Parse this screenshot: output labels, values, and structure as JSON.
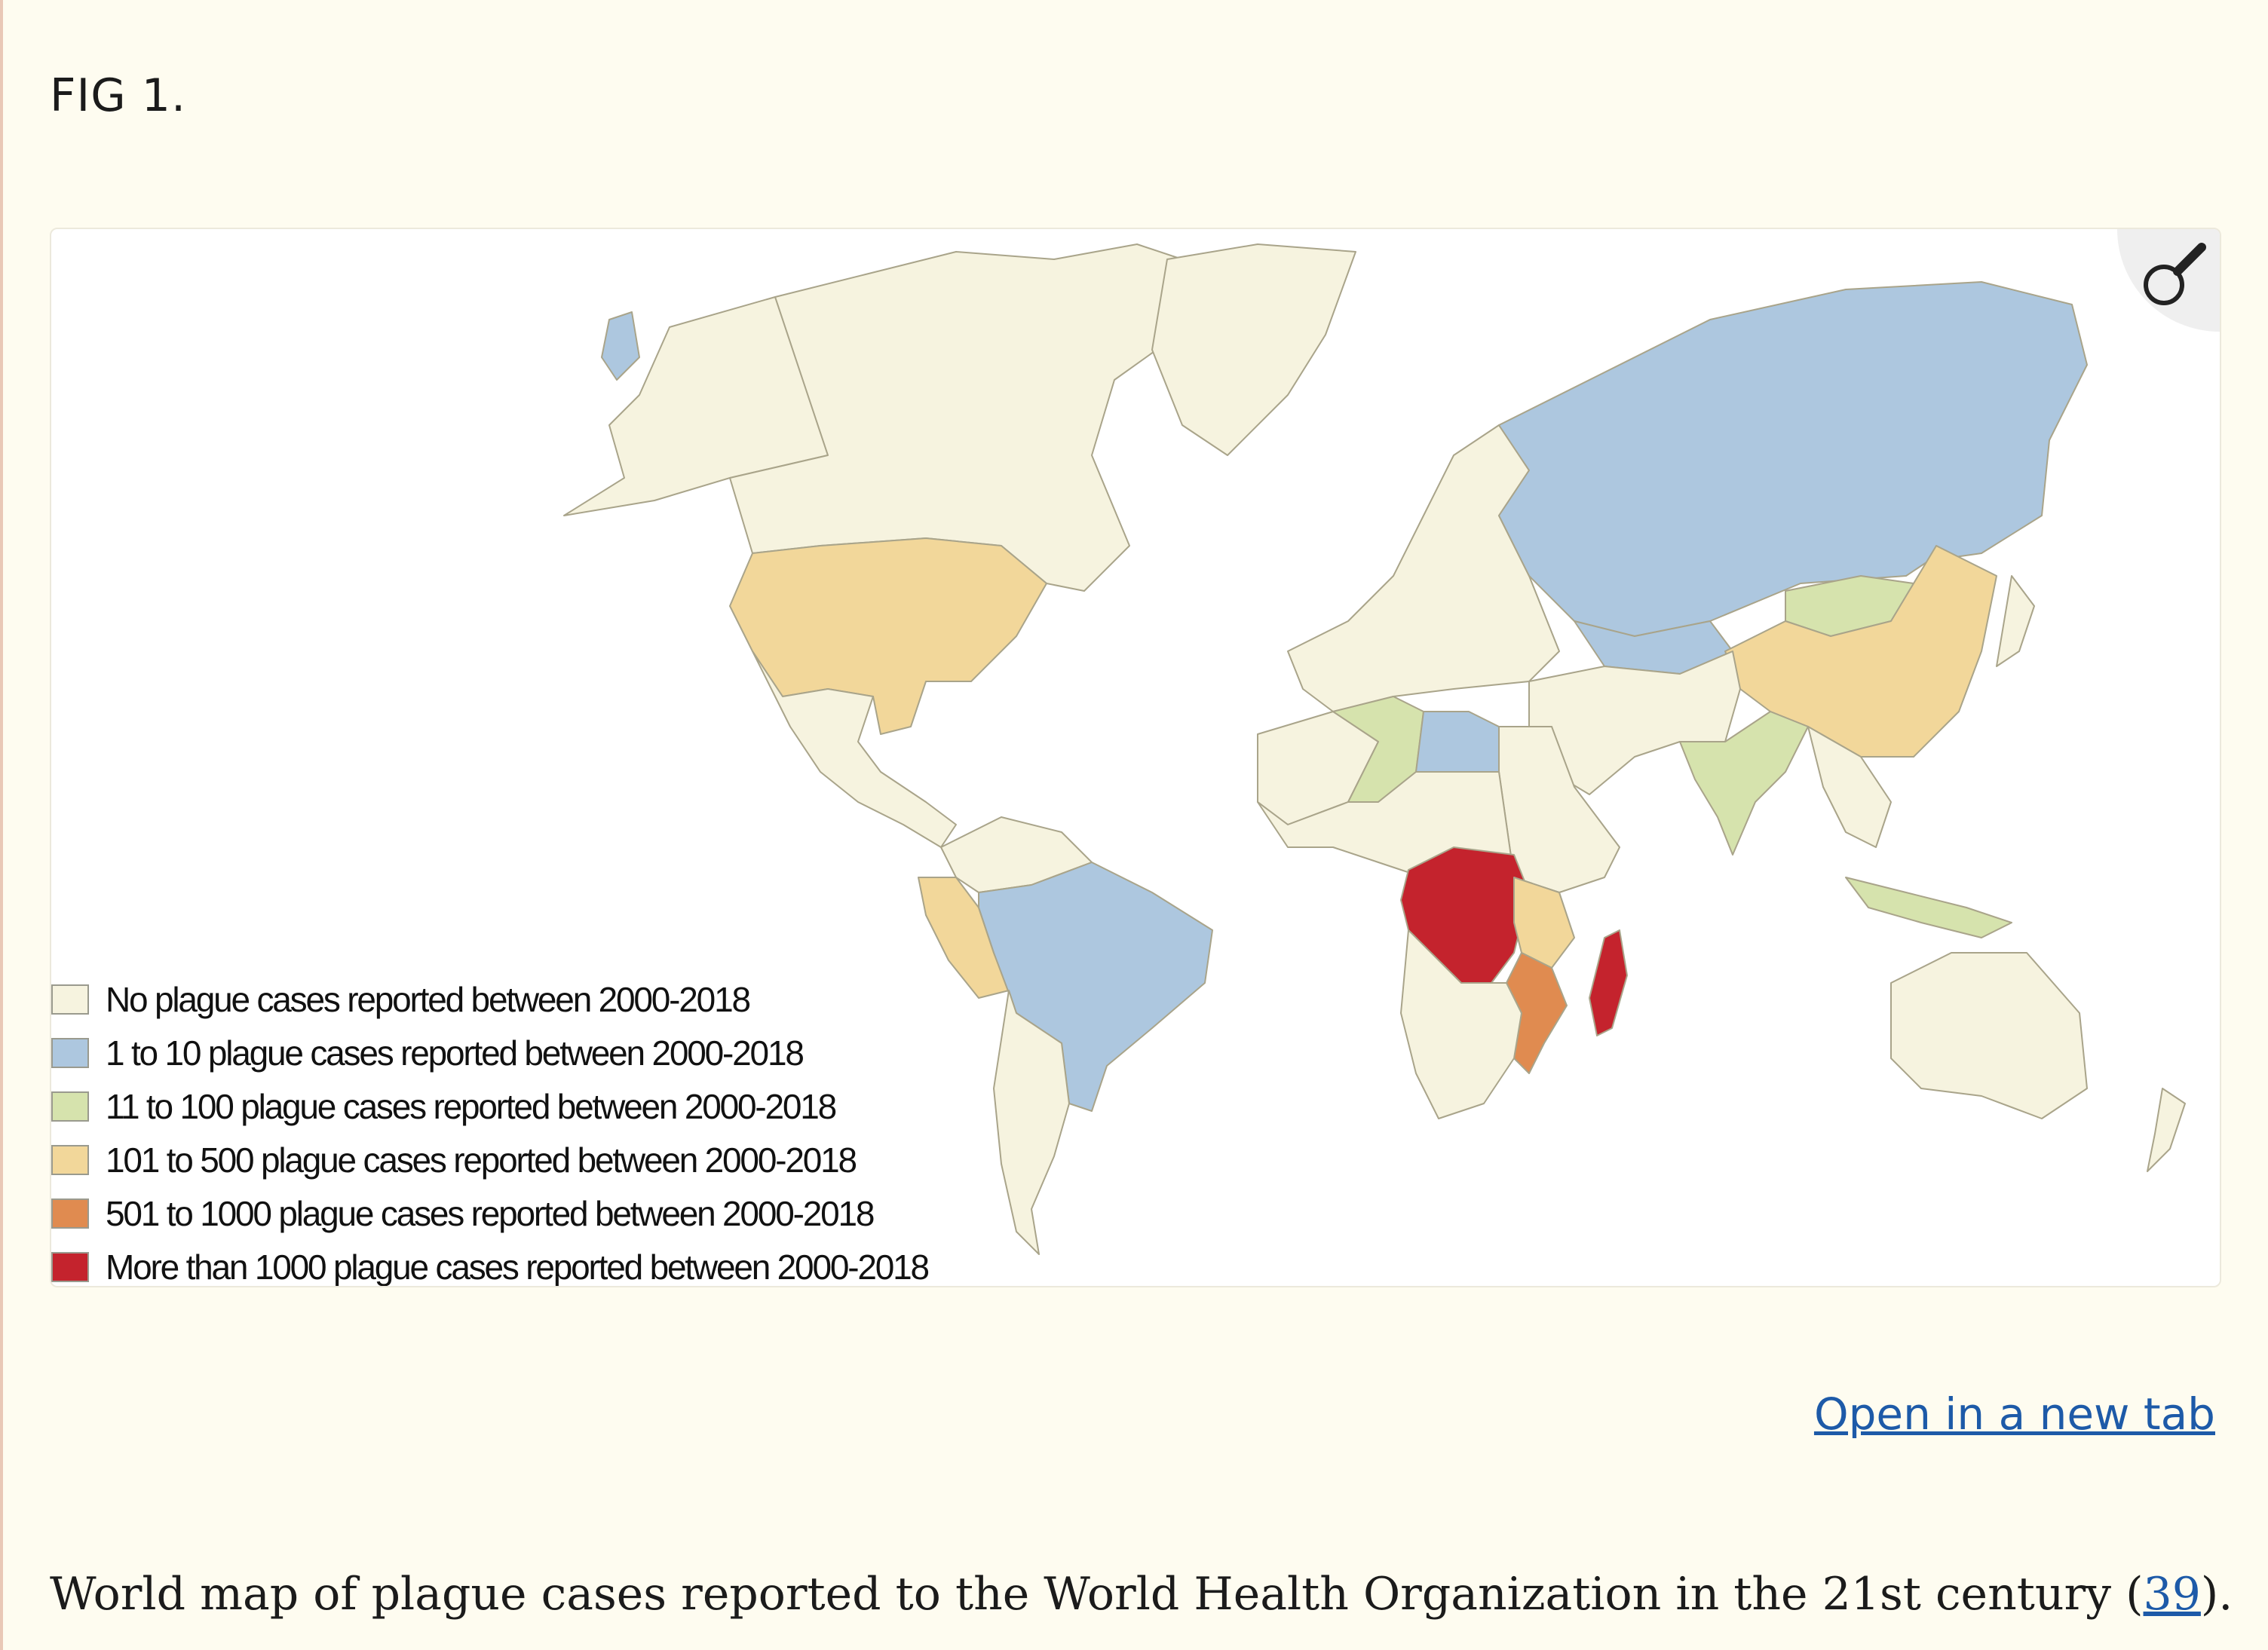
{
  "figure": {
    "label": "FIG 1.",
    "open_link": "Open in a new tab",
    "caption_prefix": "World map of plague cases reported to the World Health Organization in the 21st century (",
    "caption_ref": "39",
    "caption_suffix": ")."
  },
  "legend": {
    "items": [
      {
        "label": "No plague cases reported between 2000-2018",
        "color": "#f6f3df"
      },
      {
        "label": "1 to 10 plague cases reported between 2000-2018",
        "color": "#adc7df"
      },
      {
        "label": "11 to 100 plague cases reported between 2000-2018",
        "color": "#d6e3ad"
      },
      {
        "label": "101 to 500 plague cases reported between 2000-2018",
        "color": "#f2d79a"
      },
      {
        "label": "501 to 1000 plague cases reported between 2000-2018",
        "color": "#e08b50"
      },
      {
        "label": "More than 1000 plague cases reported between 2000-2018",
        "color": "#c4232d"
      }
    ]
  },
  "icons": {
    "zoom": "magnifier-icon"
  },
  "colors": {
    "background": "#fefcf0",
    "link": "#1d5aa8"
  }
}
